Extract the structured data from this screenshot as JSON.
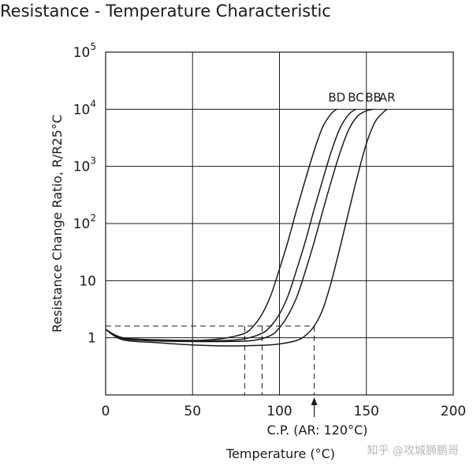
{
  "chart_data": {
    "type": "line",
    "title": "Resistance - Temperature Characteristic",
    "xlabel": "Temperature (°C)",
    "ylabel": "Resistance Change Ratio, R/R25°C",
    "xlim": [
      0,
      200
    ],
    "ylim": [
      0.1,
      100000
    ],
    "y_scale": "log",
    "grid": true,
    "x_ticks": [
      {
        "value": 0,
        "label": "0"
      },
      {
        "value": 50,
        "label": "50"
      },
      {
        "value": 100,
        "label": "100"
      },
      {
        "value": 150,
        "label": "150"
      },
      {
        "value": 200,
        "label": "200"
      }
    ],
    "y_ticks": [
      {
        "value": 1,
        "base": "1",
        "exp": ""
      },
      {
        "value": 10,
        "base": "10",
        "exp": ""
      },
      {
        "value": 100,
        "base": "10",
        "exp": "2"
      },
      {
        "value": 1000,
        "base": "10",
        "exp": "3"
      },
      {
        "value": 10000,
        "base": "10",
        "exp": "4"
      },
      {
        "value": 100000,
        "base": "10",
        "exp": "5"
      }
    ],
    "series": [
      {
        "name": "BD",
        "x": [
          0,
          10,
          30,
          50,
          60,
          70,
          80,
          85,
          90,
          95,
          100,
          105,
          110,
          115,
          120,
          125,
          130,
          133
        ],
        "y": [
          1.4,
          1.0,
          0.92,
          0.9,
          0.92,
          1.0,
          1.2,
          1.6,
          2.6,
          5.5,
          16,
          50,
          180,
          600,
          1900,
          5000,
          8500,
          10000
        ]
      },
      {
        "name": "BC",
        "x": [
          0,
          10,
          30,
          50,
          70,
          80,
          90,
          95,
          100,
          105,
          110,
          115,
          120,
          125,
          130,
          135,
          140,
          144
        ],
        "y": [
          1.4,
          0.98,
          0.9,
          0.88,
          0.9,
          0.96,
          1.2,
          1.6,
          2.6,
          5.5,
          16,
          50,
          180,
          600,
          1900,
          4800,
          8200,
          10000
        ]
      },
      {
        "name": "BB",
        "x": [
          0,
          10,
          30,
          50,
          70,
          85,
          95,
          100,
          105,
          110,
          115,
          120,
          125,
          130,
          135,
          140,
          145,
          150,
          154
        ],
        "y": [
          1.4,
          0.96,
          0.88,
          0.86,
          0.86,
          0.9,
          1.1,
          1.5,
          2.5,
          5.2,
          15,
          48,
          170,
          580,
          1800,
          4500,
          7600,
          9400,
          10000
        ]
      },
      {
        "name": "AR",
        "x": [
          0,
          10,
          30,
          50,
          70,
          90,
          100,
          110,
          115,
          120,
          125,
          130,
          135,
          140,
          145,
          150,
          155,
          160,
          162
        ],
        "y": [
          1.4,
          0.92,
          0.82,
          0.75,
          0.72,
          0.74,
          0.78,
          0.9,
          1.1,
          1.6,
          3.2,
          10,
          40,
          170,
          700,
          2500,
          6000,
          9000,
          10000
        ]
      }
    ],
    "reference_lines": {
      "y_value": 1.6,
      "x_values": [
        80,
        90,
        100,
        120
      ]
    },
    "annotation": "C.P. (AR: 120°C)",
    "annotation_x": 120
  },
  "watermark": "知乎 @攻城狮鹏哥",
  "colors": {
    "line": "#1a1a1a",
    "grid": "#1a1a1a",
    "background": "#ffffff"
  }
}
